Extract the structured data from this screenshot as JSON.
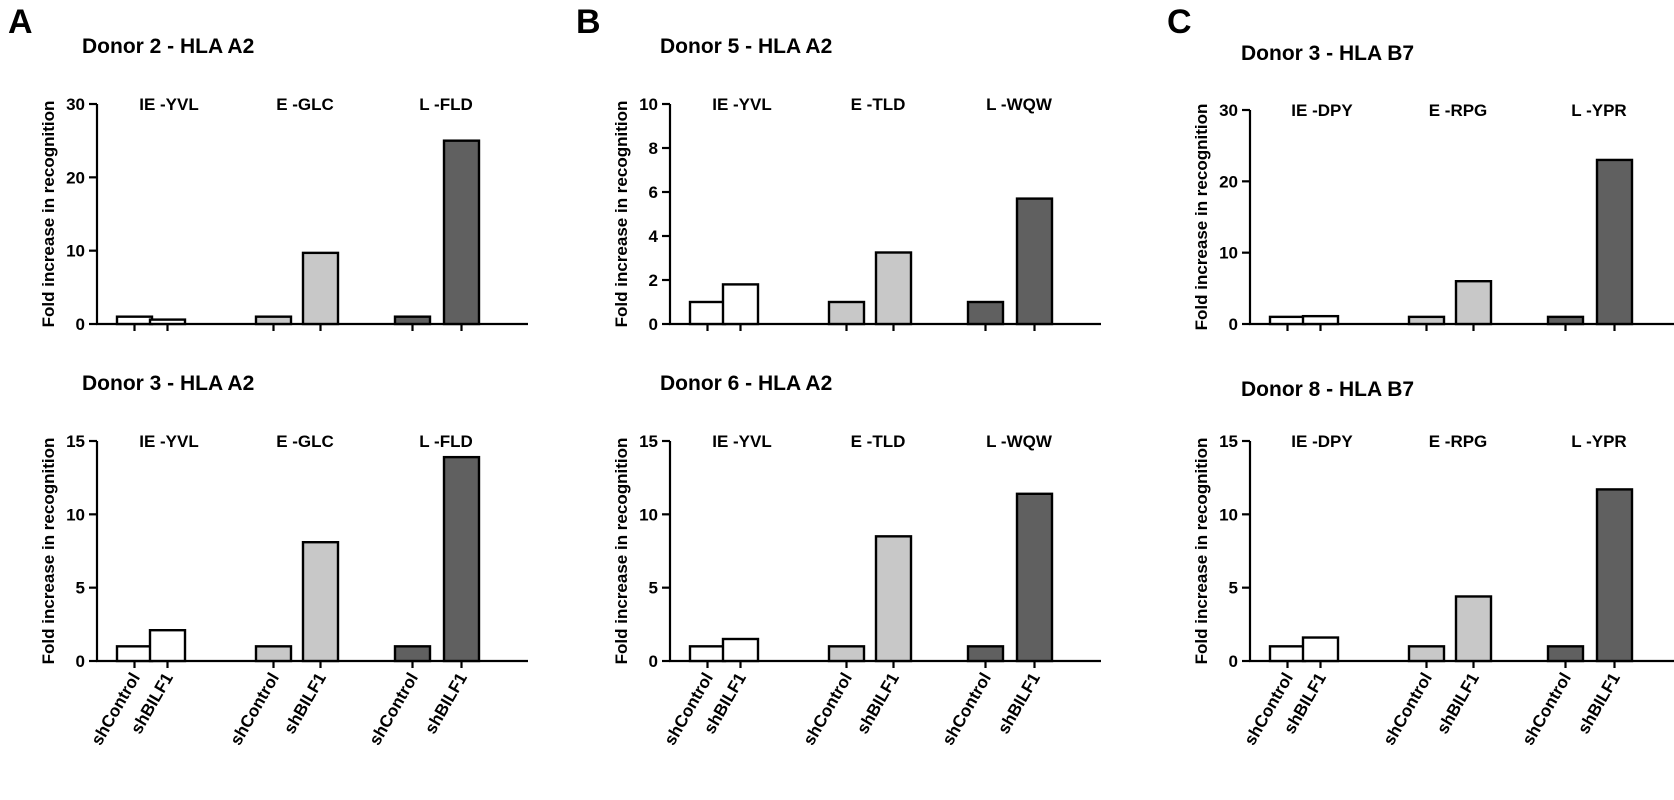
{
  "panel_letters": [
    "A",
    "B",
    "C"
  ],
  "categories": [
    "shControl",
    "shBILF1",
    "shControl",
    "shBILF1",
    "shControl",
    "shBILF1"
  ],
  "colors": {
    "ie": "#ffffff",
    "e": "#c8c8c8",
    "l": "#606060",
    "axis": "#000000"
  },
  "chart_data": [
    {
      "type": "bar",
      "title": "Donor 2 - HLA A2",
      "ylabel": "Fold increase in recognition",
      "ylim": [
        0,
        30
      ],
      "yticks": [
        0,
        10,
        20,
        30
      ],
      "groups": [
        "IE -YVL",
        "E -GLC",
        "L -FLD"
      ],
      "categories": [
        "shControl",
        "shBILF1"
      ],
      "series": [
        {
          "values": [
            1.0,
            0.6
          ]
        },
        {
          "values": [
            1.0,
            9.7
          ]
        },
        {
          "values": [
            1.0,
            25.0
          ]
        }
      ]
    },
    {
      "type": "bar",
      "title": "Donor 3 - HLA A2",
      "ylabel": "Fold increase in recognition",
      "ylim": [
        0,
        15
      ],
      "yticks": [
        0,
        5,
        10,
        15
      ],
      "groups": [
        "IE -YVL",
        "E -GLC",
        "L -FLD"
      ],
      "categories": [
        "shControl",
        "shBILF1"
      ],
      "series": [
        {
          "values": [
            1.0,
            2.1
          ]
        },
        {
          "values": [
            1.0,
            8.1
          ]
        },
        {
          "values": [
            1.0,
            13.9
          ]
        }
      ]
    },
    {
      "type": "bar",
      "title": "Donor 5 - HLA A2",
      "ylabel": "Fold increase in recognition",
      "ylim": [
        0,
        10
      ],
      "yticks": [
        0,
        2,
        4,
        6,
        8,
        10
      ],
      "groups": [
        "IE -YVL",
        "E -TLD",
        "L -WQW"
      ],
      "categories": [
        "shControl",
        "shBILF1"
      ],
      "series": [
        {
          "values": [
            1.0,
            1.8
          ]
        },
        {
          "values": [
            1.0,
            3.25
          ]
        },
        {
          "values": [
            1.0,
            5.7
          ]
        }
      ]
    },
    {
      "type": "bar",
      "title": "Donor 6 - HLA A2",
      "ylabel": "Fold increase in recognition",
      "ylim": [
        0,
        15
      ],
      "yticks": [
        0,
        5,
        10,
        15
      ],
      "groups": [
        "IE -YVL",
        "E -TLD",
        "L -WQW"
      ],
      "categories": [
        "shControl",
        "shBILF1"
      ],
      "series": [
        {
          "values": [
            1.0,
            1.5
          ]
        },
        {
          "values": [
            1.0,
            8.5
          ]
        },
        {
          "values": [
            1.0,
            11.4
          ]
        }
      ]
    },
    {
      "type": "bar",
      "title": "Donor 3 - HLA B7",
      "ylabel": "Fold increase in recognition",
      "ylim": [
        0,
        30
      ],
      "yticks": [
        0,
        10,
        20,
        30
      ],
      "groups": [
        "IE -DPY",
        "E -RPG",
        "L -YPR"
      ],
      "categories": [
        "shControl",
        "shBILF1"
      ],
      "series": [
        {
          "values": [
            1.0,
            1.1
          ]
        },
        {
          "values": [
            1.0,
            6.0
          ]
        },
        {
          "values": [
            1.0,
            23.0
          ]
        }
      ]
    },
    {
      "type": "bar",
      "title": "Donor 8 - HLA B7",
      "ylabel": "Fold increase in recognition",
      "ylim": [
        0,
        15
      ],
      "yticks": [
        0,
        5,
        10,
        15
      ],
      "groups": [
        "IE -DPY",
        "E -RPG",
        "L -YPR"
      ],
      "categories": [
        "shControl",
        "shBILF1"
      ],
      "series": [
        {
          "values": [
            1.0,
            1.6
          ]
        },
        {
          "values": [
            1.0,
            4.4
          ]
        },
        {
          "values": [
            1.0,
            11.7
          ]
        }
      ]
    }
  ]
}
